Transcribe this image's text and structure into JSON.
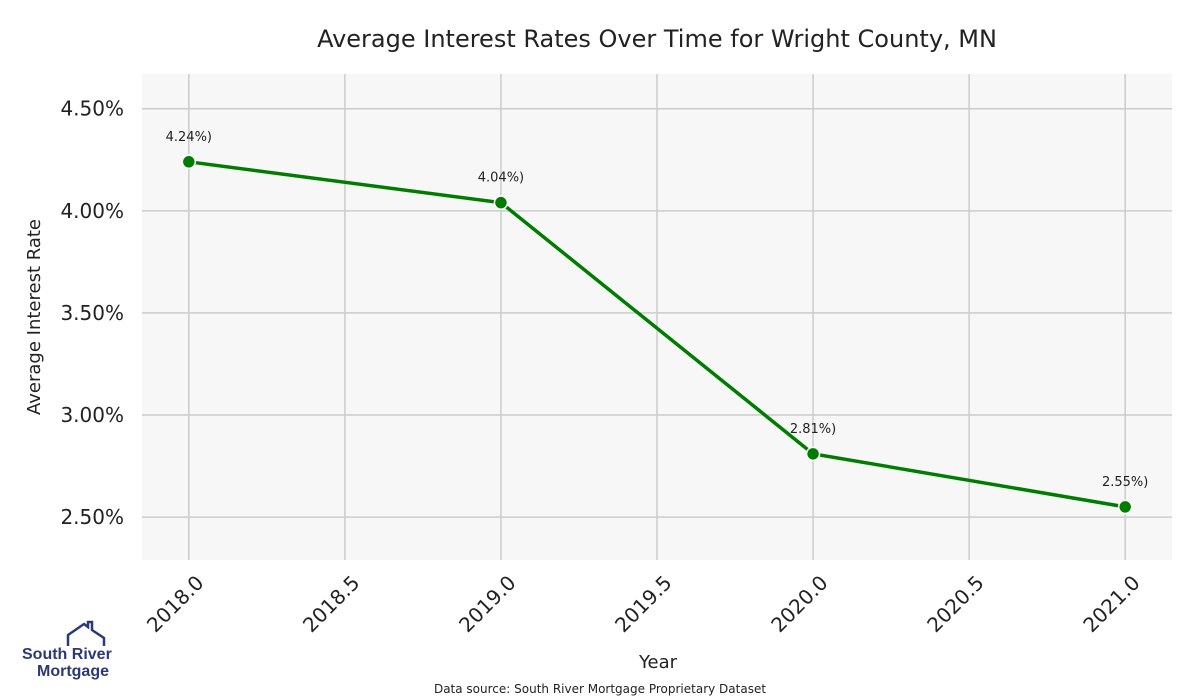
{
  "chart_data": {
    "type": "line",
    "title": "Average Interest Rates Over Time for Wright County, MN",
    "xlabel": "Year",
    "ylabel": "Average Interest Rate",
    "x": [
      2018.0,
      2019.0,
      2020.0,
      2021.0
    ],
    "series": [
      {
        "values": [
          4.24,
          4.04,
          2.81,
          2.55
        ],
        "color": "#007d00"
      }
    ],
    "data_labels": [
      "4.24%)",
      "4.04%)",
      "2.81%)",
      "2.55%)"
    ],
    "x_ticks": [
      2018.0,
      2018.5,
      2019.0,
      2019.5,
      2020.0,
      2020.5,
      2021.0
    ],
    "x_tick_labels": [
      "2018.0",
      "2018.5",
      "2019.0",
      "2019.5",
      "2020.0",
      "2020.5",
      "2021.0"
    ],
    "y_ticks": [
      2.5,
      3.0,
      3.5,
      4.0,
      4.5
    ],
    "y_tick_labels": [
      "2.50%",
      "3.00%",
      "3.50%",
      "4.00%",
      "4.50%"
    ],
    "xlim": [
      2017.85,
      2021.15
    ],
    "ylim": [
      2.29,
      4.67
    ],
    "grid": true,
    "background": "#f7f7f7",
    "grid_color": "#cccccc"
  },
  "footer": {
    "source": "Data source: South River Mortgage Proprietary Dataset"
  },
  "logo": {
    "line1": "South River",
    "line2": "Mortgage",
    "color": "#2b3a77"
  }
}
